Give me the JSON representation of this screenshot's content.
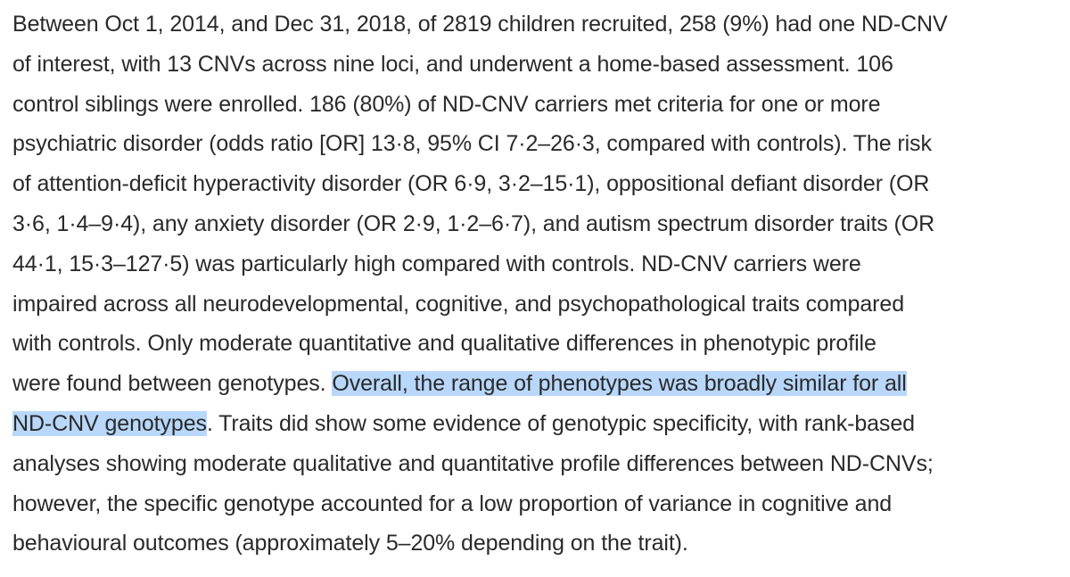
{
  "abstract": {
    "lines": [
      "Between Oct 1, 2014, and Dec 31, 2018, of 2819 children recruited, 258 (9%) had one ND-CNV",
      "of interest, with 13 CNVs across nine loci, and underwent a home-based assessment. 106",
      "control siblings were enrolled. 186 (80%) of ND-CNV carriers met criteria for one or more",
      "psychiatric disorder (odds ratio [OR] 13·8, 95% CI 7·2–26·3, compared with controls). The risk",
      "of attention-deficit hyperactivity disorder (OR 6·9, 3·2–15·1), oppositional defiant disorder (OR",
      "3·6, 1·4–9·4), any anxiety disorder (OR 2·9, 1·2–6·7), and autism spectrum disorder traits (OR",
      "44·1, 15·3–127·5) was particularly high compared with controls. ND-CNV carriers were",
      "impaired across all neurodevelopmental, cognitive, and psychopathological traits compared",
      "with controls. Only moderate quantitative and qualitative differences in phenotypic profile"
    ],
    "line10_before": "were found between genotypes. ",
    "line10_highlight": "Overall, the range of phenotypes was broadly similar for all",
    "line11_highlight": "ND-CNV genotypes",
    "line11_after": ". Traits did show some evidence of genotypic specificity, with rank-based",
    "lines_end": [
      "analyses showing moderate qualitative and quantitative profile differences between ND-CNVs;",
      "however, the specific genotype accounted for a low proportion of variance in cognitive and",
      "behavioural outcomes (approximately 5–20% depending on the trait)."
    ],
    "highlight_color": "#b8d7fb",
    "text_color": "#2a2a2a"
  }
}
